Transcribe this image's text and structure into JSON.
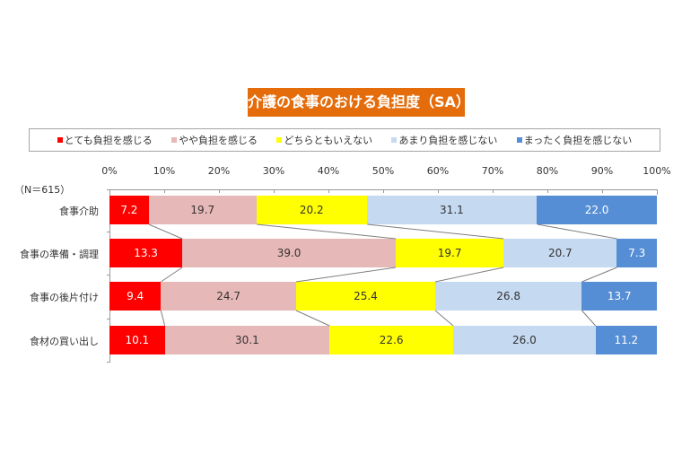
{
  "chart_data": {
    "type": "bar",
    "orientation": "horizontal",
    "stacked": "100%",
    "title": "介護の食事のおける負担度（SA）",
    "sample_note": "（N＝615）",
    "xlabel": "",
    "ylabel": "",
    "xlim": [
      0,
      100
    ],
    "x_ticks": [
      "0%",
      "10%",
      "20%",
      "30%",
      "40%",
      "50%",
      "60%",
      "70%",
      "80%",
      "90%",
      "100%"
    ],
    "legend_position": "top",
    "categories": [
      "食事介助",
      "食事の準備・調理",
      "食事の後片付け",
      "食材の買い出し"
    ],
    "series": [
      {
        "name": "とても負担を感じる",
        "color": "#ff0000",
        "label_color": "#ffffff",
        "values": [
          7.2,
          13.3,
          9.4,
          10.1
        ]
      },
      {
        "name": "やや負担を感じる",
        "color": "#e6b8b7",
        "label_color": "#333333",
        "values": [
          19.7,
          39.0,
          24.7,
          30.1
        ]
      },
      {
        "name": "どちらともいえない",
        "color": "#ffff00",
        "label_color": "#333333",
        "values": [
          20.2,
          19.7,
          25.4,
          22.6
        ]
      },
      {
        "name": "あまり負担を感じない",
        "color": "#c5d9f1",
        "label_color": "#333333",
        "values": [
          31.1,
          20.7,
          26.8,
          26.0
        ]
      },
      {
        "name": "まったく負担を感じない",
        "color": "#558ed5",
        "label_color": "#ffffff",
        "values": [
          22.0,
          7.3,
          13.7,
          11.2
        ]
      }
    ],
    "series_lines": true
  }
}
